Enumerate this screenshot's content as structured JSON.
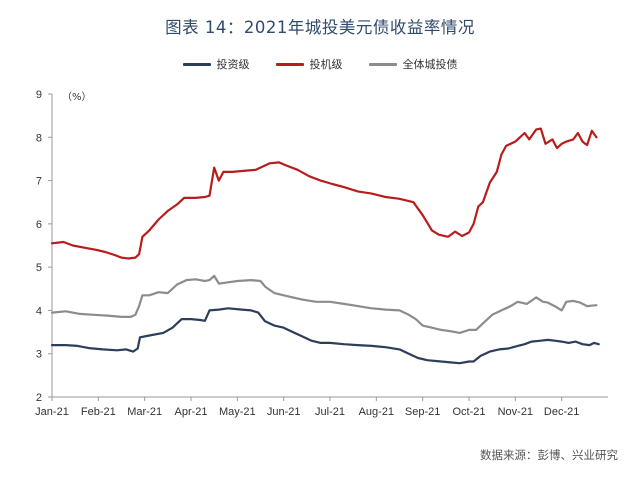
{
  "title": "图表 14：2021年城投美元债收益率情况",
  "source": "数据来源：彭博、兴业研究",
  "chart_data": {
    "type": "line",
    "title": "图表 14：2021年城投美元债收益率情况",
    "ylabel": "（%）",
    "xlabel": "",
    "ylim": [
      2,
      9
    ],
    "yticks": [
      2,
      3,
      4,
      5,
      6,
      7,
      8,
      9
    ],
    "xlim": [
      0,
      12
    ],
    "xticks": [
      0,
      1,
      2,
      3,
      4,
      5,
      6,
      7,
      8,
      9,
      10,
      11
    ],
    "xtick_labels": [
      "Jan-21",
      "Feb-21",
      "Mar-21",
      "Apr-21",
      "May-21",
      "Jun-21",
      "Jul-21",
      "Aug-21",
      "Sep-21",
      "Oct-21",
      "Nov-21",
      "Dec-21"
    ],
    "grid": false,
    "legend_position": "top",
    "series": [
      {
        "name": "投资级",
        "color": "#2c3e5a",
        "points": [
          [
            0.0,
            3.2
          ],
          [
            0.3,
            3.2
          ],
          [
            0.55,
            3.18
          ],
          [
            0.8,
            3.13
          ],
          [
            1.1,
            3.1
          ],
          [
            1.4,
            3.08
          ],
          [
            1.6,
            3.1
          ],
          [
            1.75,
            3.05
          ],
          [
            1.85,
            3.12
          ],
          [
            1.9,
            3.38
          ],
          [
            2.1,
            3.42
          ],
          [
            2.4,
            3.48
          ],
          [
            2.6,
            3.6
          ],
          [
            2.8,
            3.8
          ],
          [
            3.0,
            3.8
          ],
          [
            3.2,
            3.78
          ],
          [
            3.3,
            3.76
          ],
          [
            3.4,
            4.0
          ],
          [
            3.6,
            4.02
          ],
          [
            3.8,
            4.05
          ],
          [
            4.1,
            4.02
          ],
          [
            4.3,
            4.0
          ],
          [
            4.45,
            3.95
          ],
          [
            4.6,
            3.75
          ],
          [
            4.8,
            3.65
          ],
          [
            5.0,
            3.6
          ],
          [
            5.2,
            3.5
          ],
          [
            5.4,
            3.4
          ],
          [
            5.6,
            3.3
          ],
          [
            5.8,
            3.25
          ],
          [
            6.0,
            3.25
          ],
          [
            6.3,
            3.22
          ],
          [
            6.6,
            3.2
          ],
          [
            6.9,
            3.18
          ],
          [
            7.2,
            3.15
          ],
          [
            7.5,
            3.1
          ],
          [
            7.7,
            3.0
          ],
          [
            7.9,
            2.9
          ],
          [
            8.1,
            2.85
          ],
          [
            8.4,
            2.82
          ],
          [
            8.6,
            2.8
          ],
          [
            8.8,
            2.78
          ],
          [
            9.0,
            2.82
          ],
          [
            9.1,
            2.82
          ],
          [
            9.25,
            2.95
          ],
          [
            9.45,
            3.05
          ],
          [
            9.65,
            3.1
          ],
          [
            9.85,
            3.12
          ],
          [
            10.05,
            3.18
          ],
          [
            10.2,
            3.22
          ],
          [
            10.35,
            3.28
          ],
          [
            10.55,
            3.3
          ],
          [
            10.7,
            3.32
          ],
          [
            10.85,
            3.3
          ],
          [
            11.0,
            3.28
          ],
          [
            11.15,
            3.25
          ],
          [
            11.3,
            3.28
          ],
          [
            11.45,
            3.22
          ],
          [
            11.6,
            3.2
          ],
          [
            11.7,
            3.25
          ],
          [
            11.8,
            3.22
          ]
        ]
      },
      {
        "name": "投机级",
        "color": "#b91c1c",
        "points": [
          [
            0.0,
            5.55
          ],
          [
            0.25,
            5.58
          ],
          [
            0.45,
            5.5
          ],
          [
            0.7,
            5.45
          ],
          [
            0.95,
            5.4
          ],
          [
            1.15,
            5.35
          ],
          [
            1.35,
            5.28
          ],
          [
            1.5,
            5.22
          ],
          [
            1.65,
            5.2
          ],
          [
            1.8,
            5.22
          ],
          [
            1.88,
            5.3
          ],
          [
            1.95,
            5.7
          ],
          [
            2.1,
            5.85
          ],
          [
            2.3,
            6.1
          ],
          [
            2.5,
            6.3
          ],
          [
            2.7,
            6.45
          ],
          [
            2.85,
            6.6
          ],
          [
            3.1,
            6.6
          ],
          [
            3.3,
            6.62
          ],
          [
            3.4,
            6.65
          ],
          [
            3.5,
            7.3
          ],
          [
            3.6,
            7.0
          ],
          [
            3.7,
            7.2
          ],
          [
            3.9,
            7.2
          ],
          [
            4.1,
            7.22
          ],
          [
            4.4,
            7.25
          ],
          [
            4.7,
            7.4
          ],
          [
            4.9,
            7.42
          ],
          [
            5.05,
            7.35
          ],
          [
            5.3,
            7.25
          ],
          [
            5.55,
            7.1
          ],
          [
            5.8,
            7.0
          ],
          [
            6.05,
            6.92
          ],
          [
            6.3,
            6.85
          ],
          [
            6.6,
            6.75
          ],
          [
            6.9,
            6.7
          ],
          [
            7.2,
            6.62
          ],
          [
            7.5,
            6.58
          ],
          [
            7.8,
            6.5
          ],
          [
            8.0,
            6.2
          ],
          [
            8.2,
            5.85
          ],
          [
            8.35,
            5.75
          ],
          [
            8.55,
            5.7
          ],
          [
            8.7,
            5.82
          ],
          [
            8.85,
            5.72
          ],
          [
            9.0,
            5.8
          ],
          [
            9.1,
            6.0
          ],
          [
            9.2,
            6.4
          ],
          [
            9.3,
            6.5
          ],
          [
            9.45,
            6.95
          ],
          [
            9.6,
            7.2
          ],
          [
            9.7,
            7.6
          ],
          [
            9.8,
            7.8
          ],
          [
            10.0,
            7.9
          ],
          [
            10.1,
            8.0
          ],
          [
            10.2,
            8.1
          ],
          [
            10.3,
            7.95
          ],
          [
            10.45,
            8.18
          ],
          [
            10.55,
            8.2
          ],
          [
            10.65,
            7.85
          ],
          [
            10.8,
            7.95
          ],
          [
            10.9,
            7.75
          ],
          [
            11.0,
            7.85
          ],
          [
            11.1,
            7.9
          ],
          [
            11.25,
            7.95
          ],
          [
            11.35,
            8.1
          ],
          [
            11.45,
            7.9
          ],
          [
            11.55,
            7.82
          ],
          [
            11.65,
            8.15
          ],
          [
            11.75,
            8.0
          ]
        ]
      },
      {
        "name": "全体城投债",
        "color": "#8c8c8c",
        "points": [
          [
            0.0,
            3.95
          ],
          [
            0.3,
            3.98
          ],
          [
            0.6,
            3.92
          ],
          [
            0.9,
            3.9
          ],
          [
            1.2,
            3.88
          ],
          [
            1.5,
            3.85
          ],
          [
            1.7,
            3.85
          ],
          [
            1.8,
            3.9
          ],
          [
            1.88,
            4.1
          ],
          [
            1.95,
            4.35
          ],
          [
            2.1,
            4.35
          ],
          [
            2.3,
            4.42
          ],
          [
            2.5,
            4.4
          ],
          [
            2.7,
            4.6
          ],
          [
            2.9,
            4.7
          ],
          [
            3.1,
            4.72
          ],
          [
            3.3,
            4.68
          ],
          [
            3.4,
            4.7
          ],
          [
            3.5,
            4.8
          ],
          [
            3.6,
            4.62
          ],
          [
            3.8,
            4.65
          ],
          [
            4.0,
            4.68
          ],
          [
            4.3,
            4.7
          ],
          [
            4.5,
            4.68
          ],
          [
            4.6,
            4.55
          ],
          [
            4.8,
            4.4
          ],
          [
            5.0,
            4.35
          ],
          [
            5.2,
            4.3
          ],
          [
            5.4,
            4.25
          ],
          [
            5.7,
            4.2
          ],
          [
            6.0,
            4.2
          ],
          [
            6.3,
            4.15
          ],
          [
            6.6,
            4.1
          ],
          [
            6.9,
            4.05
          ],
          [
            7.2,
            4.02
          ],
          [
            7.5,
            4.0
          ],
          [
            7.7,
            3.9
          ],
          [
            7.85,
            3.8
          ],
          [
            8.0,
            3.65
          ],
          [
            8.2,
            3.6
          ],
          [
            8.4,
            3.55
          ],
          [
            8.6,
            3.52
          ],
          [
            8.8,
            3.48
          ],
          [
            9.0,
            3.55
          ],
          [
            9.15,
            3.55
          ],
          [
            9.3,
            3.7
          ],
          [
            9.5,
            3.9
          ],
          [
            9.7,
            4.0
          ],
          [
            9.9,
            4.1
          ],
          [
            10.05,
            4.2
          ],
          [
            10.25,
            4.15
          ],
          [
            10.45,
            4.3
          ],
          [
            10.6,
            4.2
          ],
          [
            10.7,
            4.18
          ],
          [
            10.85,
            4.1
          ],
          [
            11.0,
            4.0
          ],
          [
            11.1,
            4.2
          ],
          [
            11.25,
            4.22
          ],
          [
            11.4,
            4.18
          ],
          [
            11.55,
            4.1
          ],
          [
            11.75,
            4.12
          ]
        ]
      }
    ]
  }
}
